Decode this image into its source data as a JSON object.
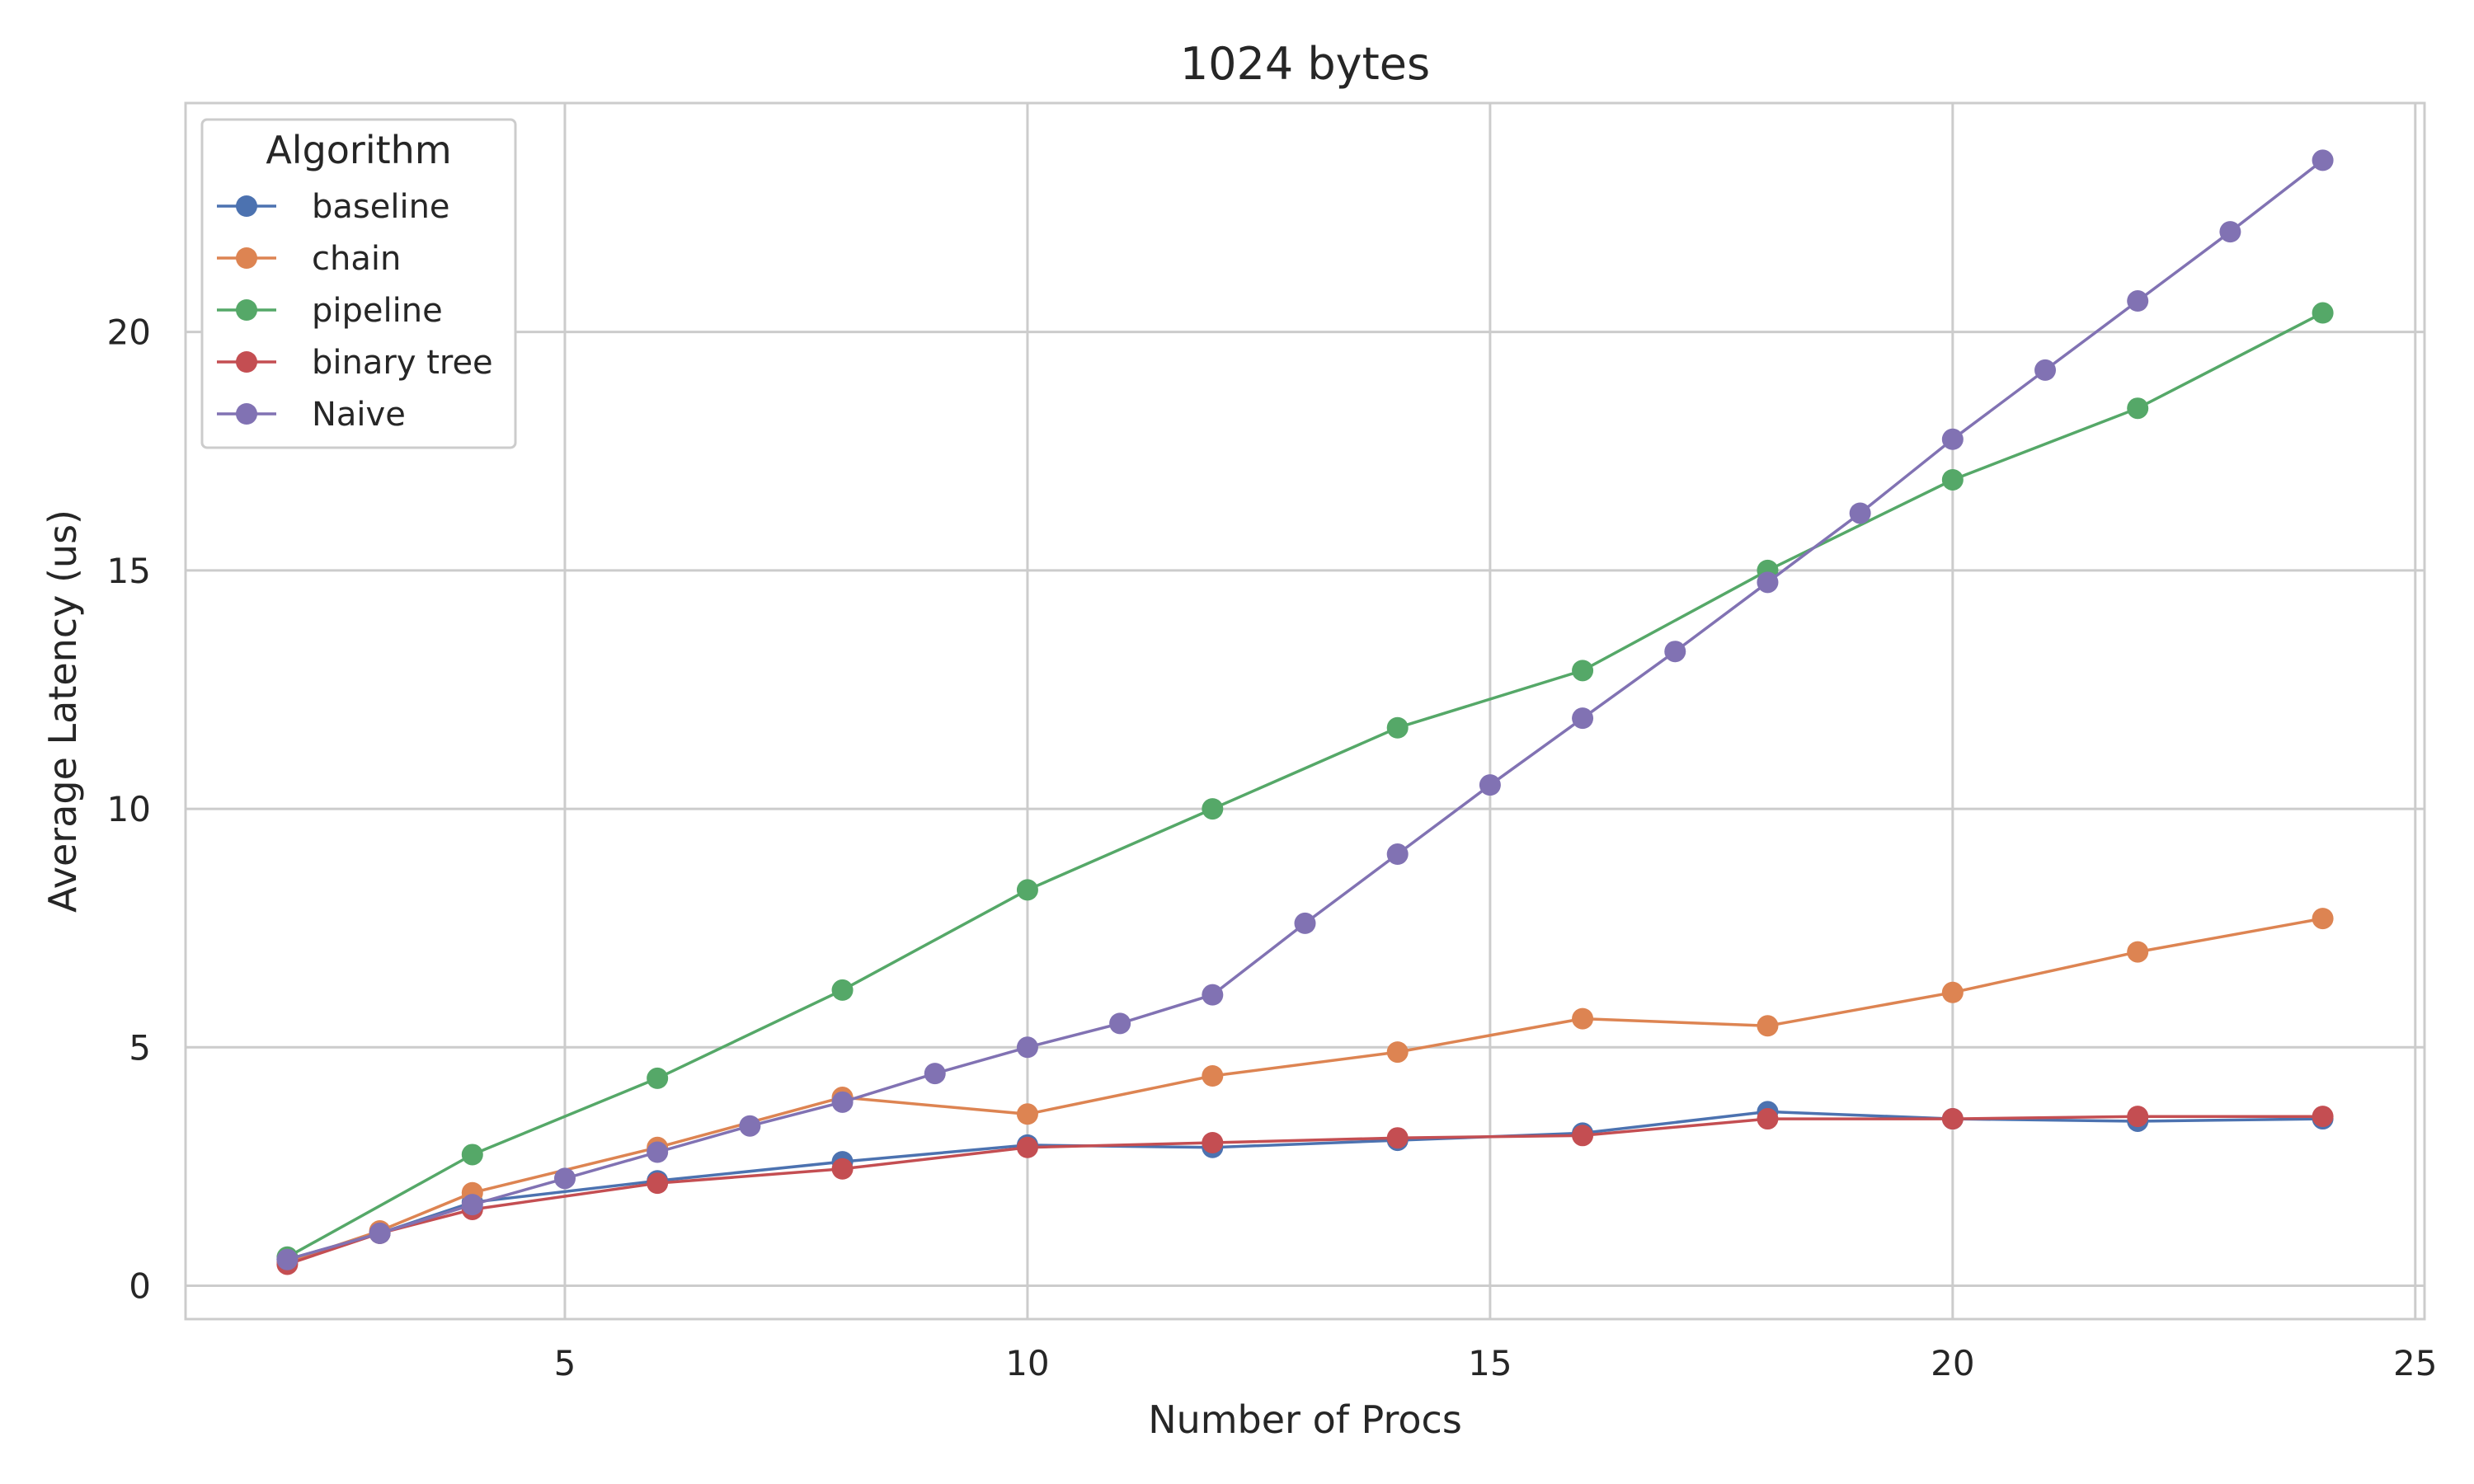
{
  "chart_data": {
    "type": "line",
    "title": "1024 bytes",
    "xlabel": "Number of Procs",
    "ylabel": "Average Latency (us)",
    "xlim": [
      0.9,
      25.1
    ],
    "ylim": [
      -0.7,
      24.8
    ],
    "xticks": [
      5,
      10,
      15,
      20,
      25
    ],
    "yticks": [
      0,
      5,
      10,
      15,
      20
    ],
    "grid": true,
    "legend": {
      "title": "Algorithm",
      "placement": "top-left"
    },
    "series": [
      {
        "name": "baseline",
        "color": "#4c72b0",
        "x": [
          2,
          3,
          4,
          6,
          8,
          10,
          12,
          14,
          16,
          18,
          20,
          22,
          24
        ],
        "y": [
          0.55,
          1.1,
          1.75,
          2.2,
          2.6,
          2.95,
          2.9,
          3.05,
          3.2,
          3.65,
          3.5,
          3.45,
          3.5
        ]
      },
      {
        "name": "chain",
        "color": "#dd8452",
        "x": [
          2,
          3,
          4,
          6,
          8,
          10,
          12,
          14,
          16,
          18,
          20,
          22,
          24
        ],
        "y": [
          0.5,
          1.15,
          1.95,
          2.9,
          3.95,
          3.6,
          4.4,
          4.9,
          5.6,
          5.45,
          6.15,
          7.0,
          7.7
        ]
      },
      {
        "name": "pipeline",
        "color": "#55a868",
        "x": [
          2,
          4,
          6,
          8,
          10,
          12,
          14,
          16,
          18,
          20,
          22,
          24
        ],
        "y": [
          0.6,
          2.75,
          4.35,
          6.2,
          8.3,
          10.0,
          11.7,
          12.9,
          15.0,
          16.9,
          18.4,
          20.4
        ]
      },
      {
        "name": "binary tree",
        "color": "#c44e52",
        "x": [
          2,
          3,
          4,
          6,
          8,
          10,
          12,
          14,
          16,
          18,
          20,
          22,
          24
        ],
        "y": [
          0.45,
          1.1,
          1.6,
          2.15,
          2.45,
          2.9,
          3.0,
          3.1,
          3.15,
          3.5,
          3.5,
          3.55,
          3.55
        ]
      },
      {
        "name": "Naive",
        "color": "#8172b3",
        "x": [
          2,
          3,
          4,
          5,
          6,
          7,
          8,
          9,
          10,
          11,
          12,
          13,
          14,
          15,
          16,
          17,
          18,
          19,
          20,
          21,
          22,
          23,
          24
        ],
        "y": [
          0.55,
          1.1,
          1.7,
          2.25,
          2.8,
          3.35,
          3.85,
          4.45,
          5.0,
          5.5,
          6.1,
          7.6,
          9.05,
          10.5,
          11.9,
          13.3,
          14.75,
          16.2,
          17.75,
          19.2,
          20.65,
          22.1,
          23.6
        ]
      }
    ]
  }
}
